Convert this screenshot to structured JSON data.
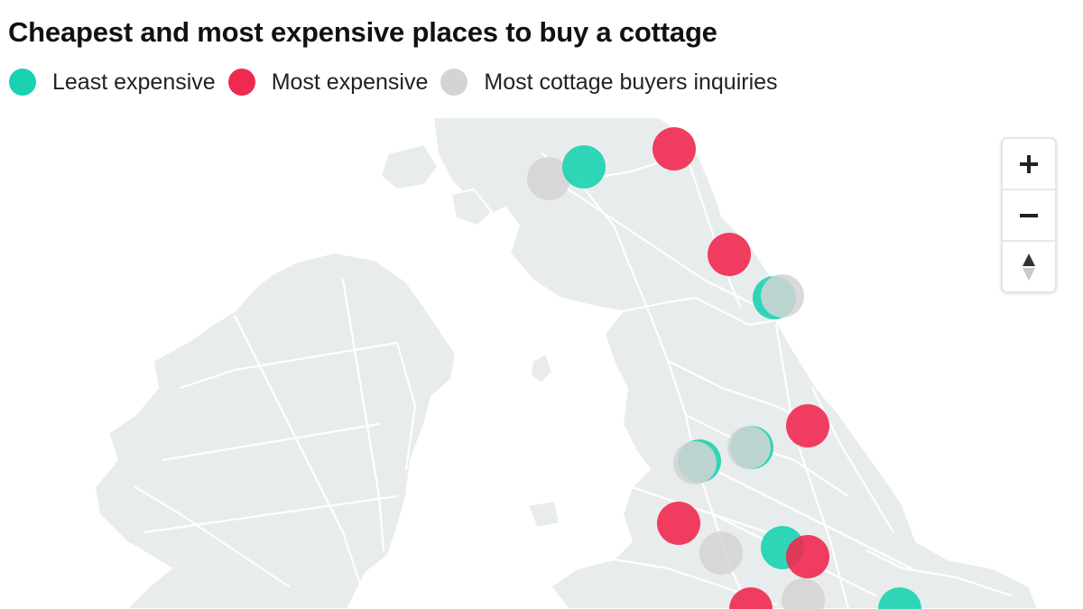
{
  "title": "Cheapest and most expensive places to buy a cottage",
  "legend": [
    {
      "label": "Least expensive",
      "color": "#19d3b0"
    },
    {
      "label": "Most expensive",
      "color": "#f0294f"
    },
    {
      "label": "Most cottage buyers inquiries",
      "color": "#d3d4d4"
    }
  ],
  "colors": {
    "land": "#e8eced",
    "roads": "#ffffff",
    "sea": "#ffffff"
  },
  "controls": {
    "zoom_in_icon": "plus-icon",
    "zoom_out_icon": "minus-icon",
    "compass_icon": "compass-icon"
  },
  "markers": [
    {
      "category": "inquiries"
    },
    {
      "category": "least"
    },
    {
      "category": "most"
    },
    {
      "category": "most"
    },
    {
      "category": "least"
    },
    {
      "category": "inquiries"
    },
    {
      "category": "most"
    },
    {
      "category": "least"
    },
    {
      "category": "inquiries"
    },
    {
      "category": "least"
    },
    {
      "category": "inquiries"
    },
    {
      "category": "most"
    },
    {
      "category": "inquiries"
    },
    {
      "category": "least"
    },
    {
      "category": "most"
    },
    {
      "category": "most"
    },
    {
      "category": "inquiries"
    },
    {
      "category": "least"
    }
  ]
}
